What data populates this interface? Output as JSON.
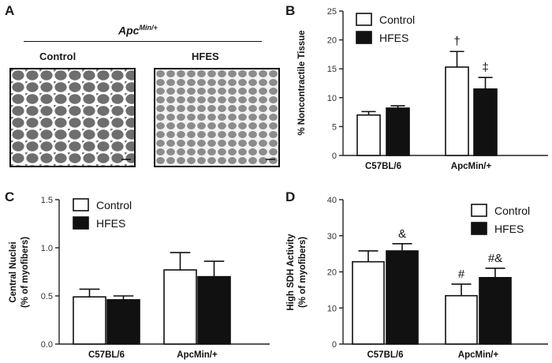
{
  "panel_a": {
    "letter": "A",
    "group": "Apc",
    "group_sup": "Min/+",
    "left_label": "Control",
    "right_label": "HFES"
  },
  "colors": {
    "control": "#ffffff",
    "hfes": "#111111",
    "stroke": "#111111"
  },
  "chart_data": [
    {
      "panel": "B",
      "type": "bar",
      "ylabel": "% Noncontractile Tissue",
      "ylim": [
        0,
        25
      ],
      "yticks": [
        0,
        5,
        10,
        15,
        20,
        25
      ],
      "ytick_labels": [
        "0",
        "5",
        "10",
        "15",
        "20",
        "25"
      ],
      "categories": [
        "C57BL/6",
        "ApcMin/+"
      ],
      "series": [
        {
          "name": "Control",
          "values": [
            7.0,
            15.3
          ],
          "errors": [
            0.6,
            2.7
          ]
        },
        {
          "name": "HFES",
          "values": [
            8.2,
            11.5
          ],
          "errors": [
            0.4,
            2.0
          ]
        }
      ],
      "annotations": [
        {
          "text": "†",
          "category": 1,
          "series": 0
        },
        {
          "text": "‡",
          "category": 1,
          "series": 1
        }
      ],
      "legend": "top-left"
    },
    {
      "panel": "C",
      "type": "bar",
      "ylabel": "Central Nuclei\n(% of myofibers)",
      "ylim": [
        0,
        1.5
      ],
      "yticks": [
        0,
        0.5,
        1.0,
        1.5
      ],
      "ytick_labels": [
        "0.0",
        "0.5",
        "1.0",
        "1.5"
      ],
      "categories": [
        "C57BL/6",
        "ApcMin/+"
      ],
      "series": [
        {
          "name": "Control",
          "values": [
            0.49,
            0.77
          ],
          "errors": [
            0.08,
            0.18
          ]
        },
        {
          "name": "HFES",
          "values": [
            0.46,
            0.7
          ],
          "errors": [
            0.04,
            0.16
          ]
        }
      ],
      "annotations": [],
      "legend": "top-left"
    },
    {
      "panel": "D",
      "type": "bar",
      "ylabel": "High SDH Activity\n(% of myofibers)",
      "ylim": [
        0,
        40
      ],
      "yticks": [
        0,
        10,
        20,
        30,
        40
      ],
      "ytick_labels": [
        "0",
        "10",
        "20",
        "30",
        "40"
      ],
      "categories": [
        "C57BL/6",
        "ApcMin/+"
      ],
      "series": [
        {
          "name": "Control",
          "values": [
            22.8,
            13.4
          ],
          "errors": [
            3.0,
            3.2
          ]
        },
        {
          "name": "HFES",
          "values": [
            25.8,
            18.4
          ],
          "errors": [
            2.0,
            2.6
          ]
        }
      ],
      "annotations": [
        {
          "text": "&",
          "category": 0,
          "series": 1
        },
        {
          "text": "#",
          "category": 1,
          "series": 0
        },
        {
          "text": "#&",
          "category": 1,
          "series": 1
        }
      ],
      "legend": "top-right"
    }
  ]
}
